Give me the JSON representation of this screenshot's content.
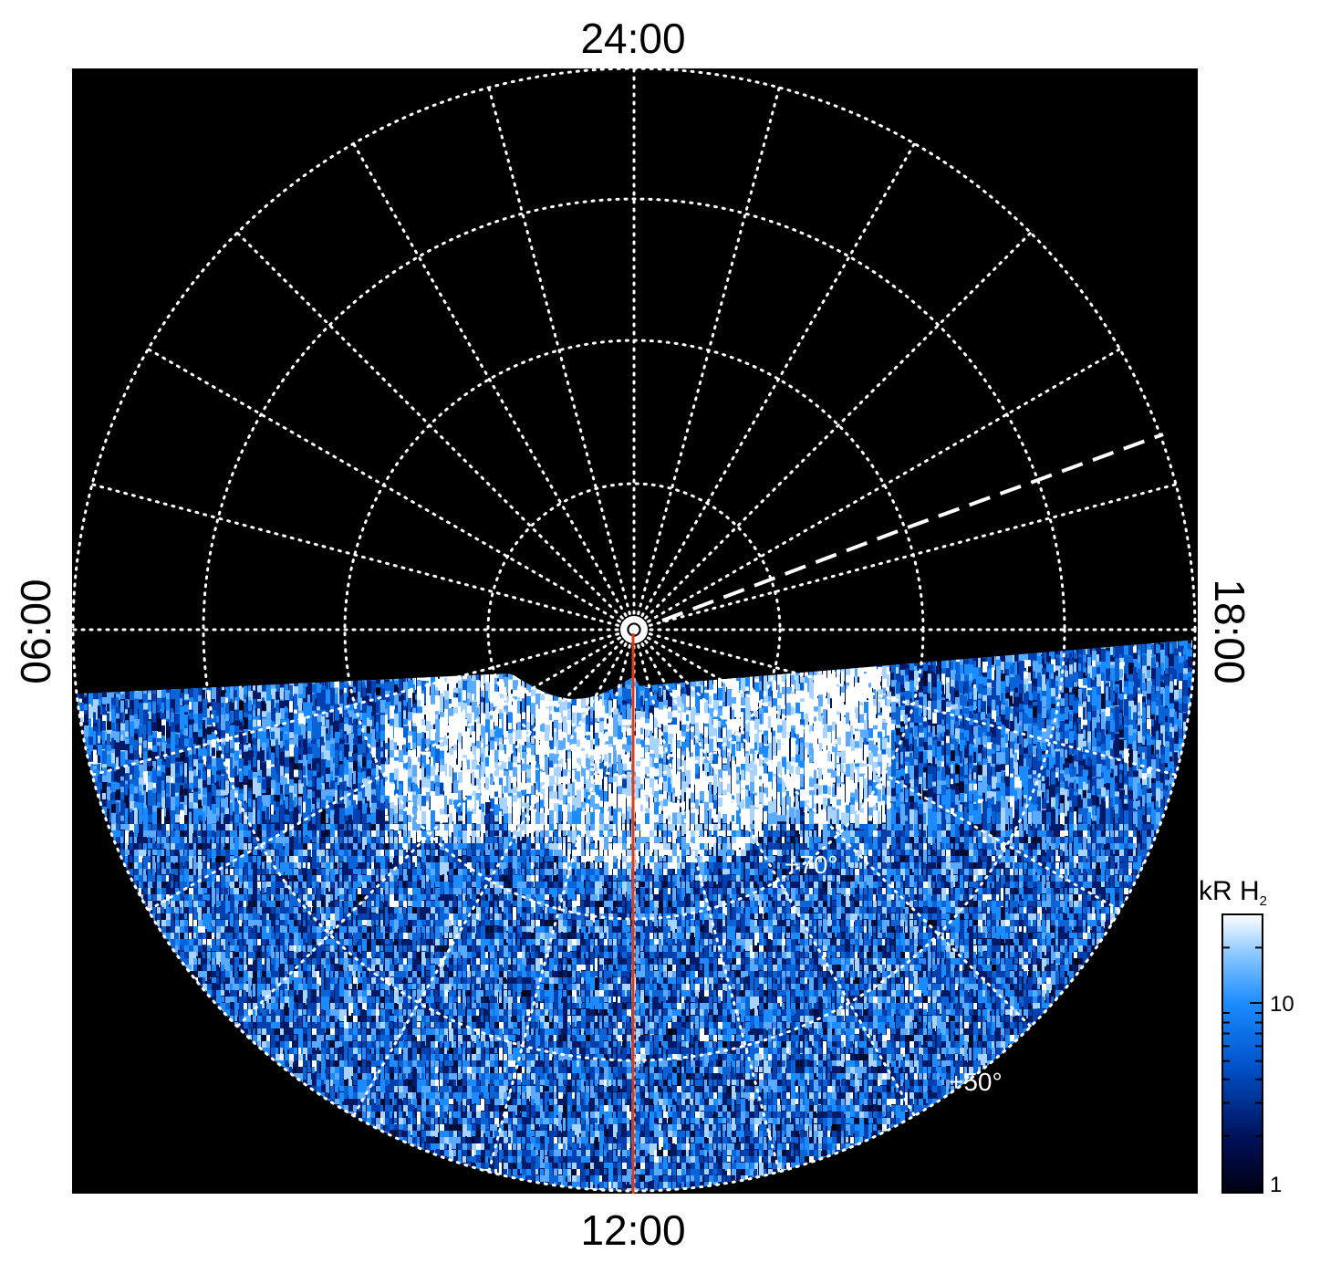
{
  "local_time_labels": {
    "top": "24:00",
    "bottom": "12:00",
    "left": "06:00",
    "right": "18:00"
  },
  "latitude_labels": {
    "inner": "+70°",
    "outer": "+50°"
  },
  "colorbar": {
    "title_main": "kR H",
    "title_sub": "2",
    "ticks": [
      {
        "label": "10",
        "value": 10
      },
      {
        "label": "1",
        "value": 1
      }
    ],
    "range": [
      1,
      30
    ],
    "scale": "log",
    "colors": [
      "#000010",
      "#00105a",
      "#0050c8",
      "#1a8cff",
      "#8cc8ff",
      "#ffffff"
    ]
  },
  "colors": {
    "background": "#000000",
    "grid": "#ffffff",
    "meridian_line": "#d2401e",
    "page": "#ffffff"
  }
}
